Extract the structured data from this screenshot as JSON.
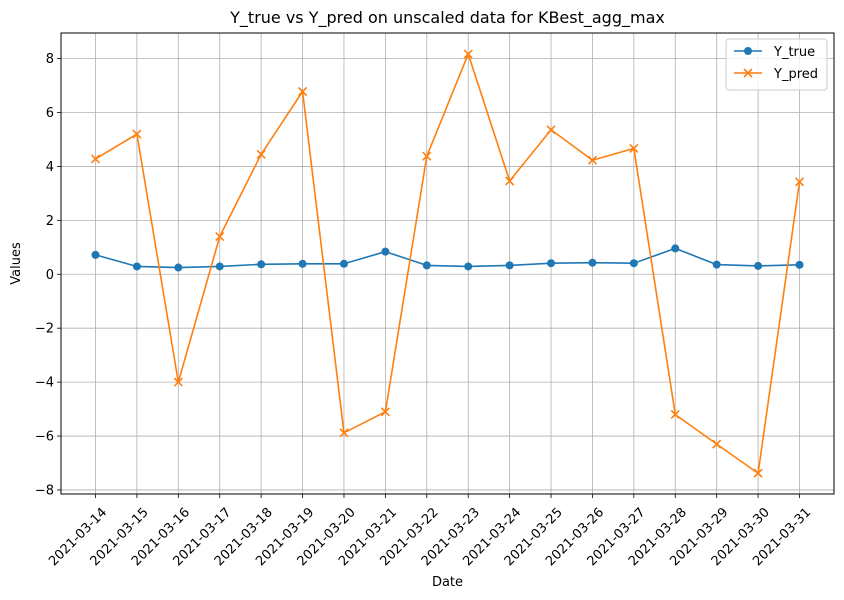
{
  "chart_data": {
    "type": "line",
    "title": "Y_true vs Y_pred on unscaled data for KBest_agg_max",
    "xlabel": "Date",
    "ylabel": "Values",
    "ylim": [
      -8.15,
      8.95
    ],
    "yticks": [
      -8,
      -6,
      -4,
      -2,
      0,
      2,
      4,
      6,
      8
    ],
    "grid": true,
    "legend_position": "top-right",
    "x": [
      "2021-03-14",
      "2021-03-15",
      "2021-03-16",
      "2021-03-17",
      "2021-03-18",
      "2021-03-19",
      "2021-03-20",
      "2021-03-21",
      "2021-03-22",
      "2021-03-23",
      "2021-03-24",
      "2021-03-25",
      "2021-03-26",
      "2021-03-27",
      "2021-03-28",
      "2021-03-29",
      "2021-03-30",
      "2021-03-31"
    ],
    "series": [
      {
        "name": "Y_true",
        "color": "#1f77b4",
        "marker": "circle",
        "values": [
          0.72,
          0.29,
          0.25,
          0.29,
          0.37,
          0.39,
          0.39,
          0.84,
          0.33,
          0.29,
          0.33,
          0.41,
          0.43,
          0.41,
          0.96,
          0.36,
          0.31,
          0.35
        ]
      },
      {
        "name": "Y_pred",
        "color": "#ff7f0e",
        "marker": "x",
        "values": [
          4.28,
          5.2,
          -4.0,
          1.4,
          4.45,
          6.78,
          -5.88,
          -5.1,
          4.38,
          8.17,
          3.46,
          5.36,
          4.23,
          4.67,
          -5.2,
          -6.3,
          -7.38,
          3.43
        ]
      }
    ]
  }
}
